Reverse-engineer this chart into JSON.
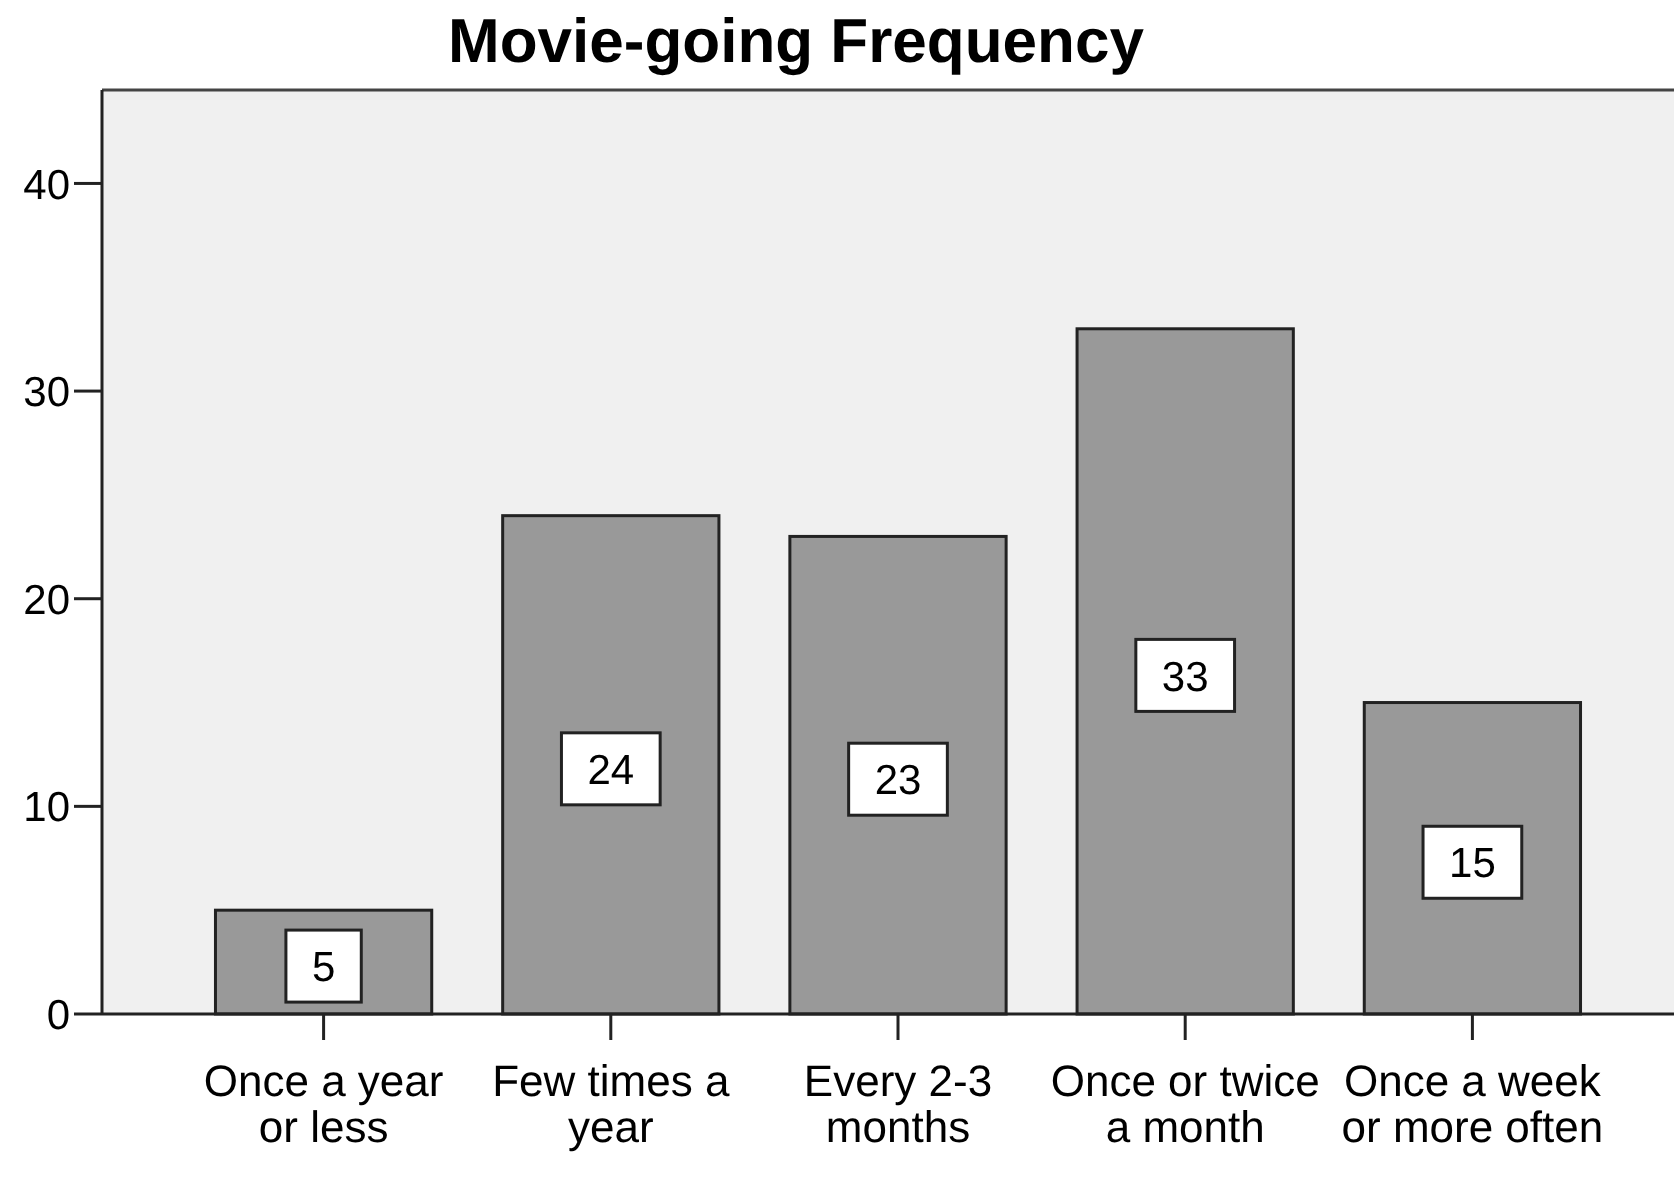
{
  "chart_data": {
    "type": "bar",
    "title": "Movie-going Frequency",
    "categories": [
      "Once a year or less",
      "Few times a year",
      "Every 2-3 months",
      "Once or twice a month",
      "Once a week or more often"
    ],
    "values": [
      5,
      24,
      23,
      33,
      15
    ],
    "color": "#999999",
    "ylim": [
      0,
      44.5
    ],
    "yticks": [
      0,
      10,
      20,
      30,
      40
    ],
    "data_labels": true
  }
}
